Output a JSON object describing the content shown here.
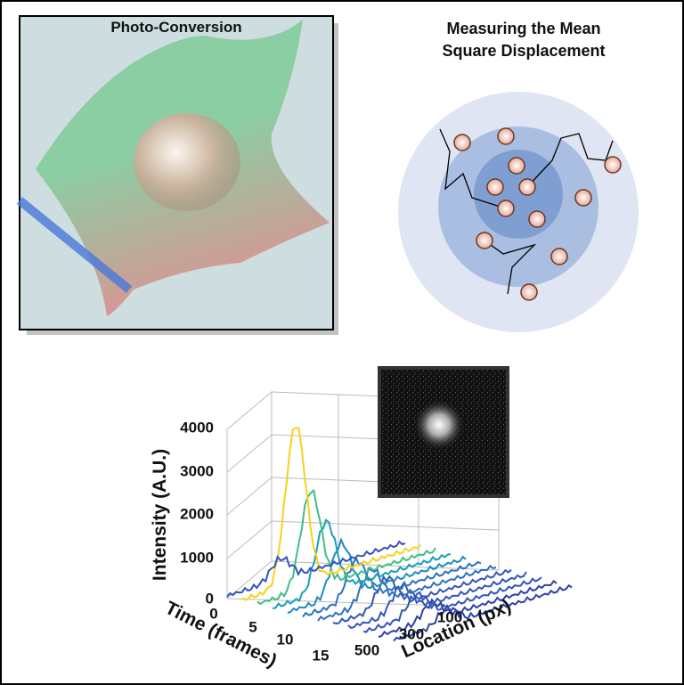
{
  "panel_a": {
    "title": "Photo-Conversion"
  },
  "panel_b": {
    "title_lines": [
      "Measuring the Mean",
      "Square Displacement"
    ]
  },
  "panel_c": {
    "y_label": "Intensity (A.U.)",
    "y_ticks": [
      "4000",
      "3000",
      "2000",
      "1000",
      "0"
    ],
    "time_label": "Time (frames)",
    "time_ticks": [
      "0",
      "5",
      "10",
      "15"
    ],
    "location_label": "Location (px)",
    "location_ticks": [
      "100",
      "300",
      "500"
    ]
  }
}
